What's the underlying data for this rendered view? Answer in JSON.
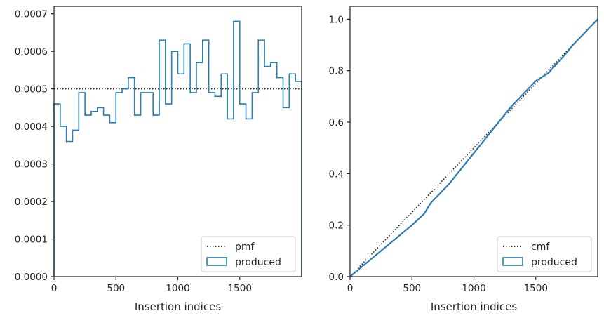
{
  "colors": {
    "produced": "#2a7fb0",
    "reference": "#1a1a1a",
    "axes": "#262626"
  },
  "chart_data": [
    {
      "type": "step",
      "xlabel": "Insertion indices",
      "ylabel": "",
      "xlim": [
        0,
        2000
      ],
      "ylim": [
        0,
        0.00072
      ],
      "xticks": [
        0,
        500,
        1000,
        1500
      ],
      "yticks": [
        0,
        0.0001,
        0.0002,
        0.0003,
        0.0004,
        0.0005,
        0.0006,
        0.0007
      ],
      "ytick_labels": [
        "0.0000",
        "0.0001",
        "0.0002",
        "0.0003",
        "0.0004",
        "0.0005",
        "0.0006",
        "0.0007"
      ],
      "legend_position": "lower-right",
      "legend": [
        "pmf",
        "produced"
      ],
      "reference": {
        "name": "pmf",
        "style": "dotted",
        "value": 0.0005
      },
      "series": [
        {
          "name": "produced",
          "bin_width": 50,
          "bin_edges_start": 0,
          "values": [
            0.00046,
            0.0004,
            0.00036,
            0.00039,
            0.00049,
            0.00043,
            0.00044,
            0.00045,
            0.00043,
            0.00041,
            0.00049,
            0.0005,
            0.00053,
            0.00043,
            0.00049,
            0.00049,
            0.00043,
            0.00063,
            0.00046,
            0.0006,
            0.00054,
            0.00062,
            0.00049,
            0.00057,
            0.00063,
            0.00049,
            0.00048,
            0.00054,
            0.00042,
            0.00068,
            0.00046,
            0.00042,
            0.00049,
            0.00063,
            0.00056,
            0.00057,
            0.00053,
            0.00045,
            0.00054,
            0.00052
          ]
        }
      ]
    },
    {
      "type": "line",
      "xlabel": "Insertion indices",
      "ylabel": "",
      "xlim": [
        0,
        2000
      ],
      "ylim": [
        0,
        1.05
      ],
      "xticks": [
        0,
        500,
        1000,
        1500
      ],
      "yticks": [
        0,
        0.2,
        0.4,
        0.6,
        0.8,
        1.0
      ],
      "ytick_labels": [
        "0.0",
        "0.2",
        "0.4",
        "0.6",
        "0.8",
        "1.0"
      ],
      "legend_position": "lower-right",
      "legend": [
        "cmf",
        "produced"
      ],
      "reference": {
        "name": "cmf",
        "style": "dotted",
        "x": [
          0,
          2000
        ],
        "y": [
          0,
          1.0
        ]
      },
      "series": [
        {
          "name": "produced",
          "x": [
            0,
            100,
            200,
            300,
            400,
            500,
            600,
            650,
            800,
            1000,
            1250,
            1300,
            1400,
            1500,
            1600,
            1750,
            1800,
            2000
          ],
          "y": [
            0,
            0.04,
            0.08,
            0.12,
            0.16,
            0.2,
            0.245,
            0.285,
            0.36,
            0.48,
            0.63,
            0.66,
            0.71,
            0.76,
            0.79,
            0.87,
            0.9,
            1.0
          ]
        }
      ]
    }
  ]
}
